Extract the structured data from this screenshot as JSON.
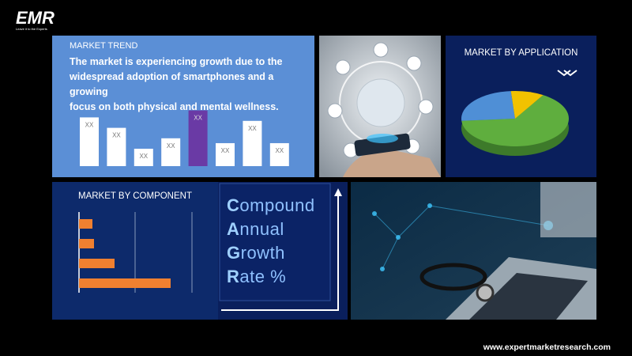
{
  "logo": {
    "text": "EMR",
    "tagline": "Leave it to the Experts"
  },
  "market_trend": {
    "heading": "MARKET TREND",
    "text": [
      "The market is experiencing growth due to the",
      "widespread adoption of smartphones and a growing",
      "focus on both physical and mental wellness."
    ],
    "bar_labels": [
      "XX",
      "XX",
      "XX",
      "XX",
      "XX",
      "XX",
      "XX",
      "XX"
    ],
    "values": [
      70,
      55,
      25,
      40,
      80,
      33,
      65,
      33
    ]
  },
  "market_by_application": {
    "heading": "MARKET BY APPLICATION",
    "values": [
      65,
      25,
      10
    ],
    "colors": [
      "#5fae3e",
      "#4f8fd6",
      "#f2c200"
    ]
  },
  "market_by_component": {
    "heading": "MARKET BY COMPONENT",
    "values": [
      17,
      19,
      45,
      116
    ]
  },
  "cagr": {
    "words": [
      "Compound",
      "Annual",
      "Growth",
      "Rate %"
    ]
  },
  "footer": {
    "url": "www.expertmarketresearch.com"
  }
}
